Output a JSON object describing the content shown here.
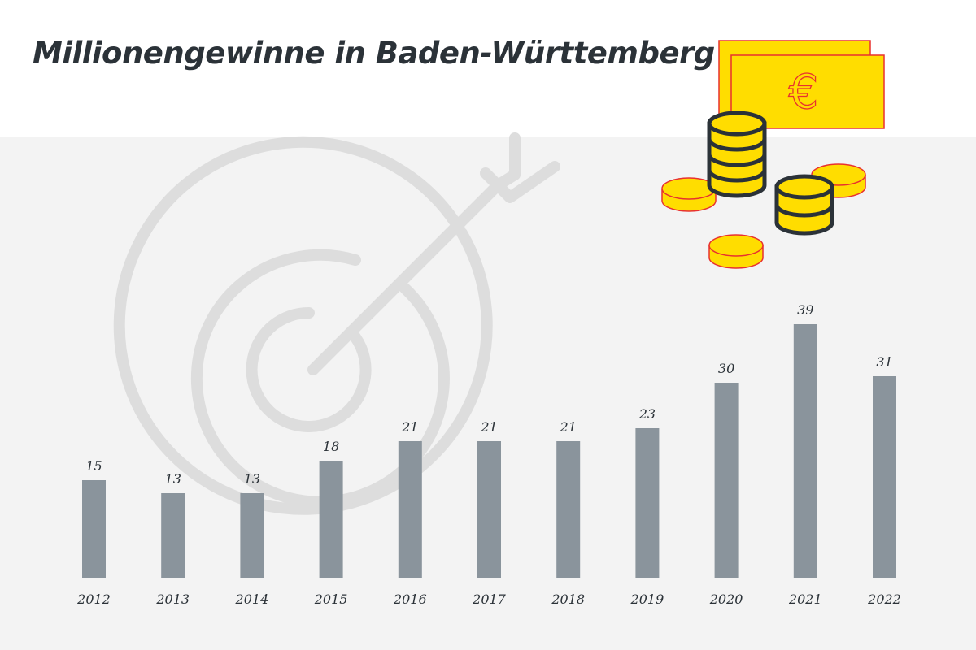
{
  "header": {
    "title": "Millionengewinne in Baden-Württemberg"
  },
  "colors": {
    "bar": "#8a949c",
    "panel": "#f3f3f3",
    "text": "#2b3238",
    "gold": "#ffdd00",
    "gold_outline": "#e8312f"
  },
  "icons": {
    "background": "target-with-arrow-icon",
    "decoration": "money-coins-and-banknote-icon",
    "banknote_symbol": "€"
  },
  "chart_data": {
    "type": "bar",
    "title": "Millionengewinne in Baden-Württemberg",
    "xlabel": "",
    "ylabel": "",
    "categories": [
      "2012",
      "2013",
      "2014",
      "2015",
      "2016",
      "2017",
      "2018",
      "2019",
      "2020",
      "2021",
      "2022"
    ],
    "values": [
      15,
      13,
      13,
      18,
      21,
      21,
      21,
      23,
      30,
      39,
      31
    ],
    "ylim": [
      0,
      40
    ],
    "grid": false,
    "data_labels": true
  }
}
